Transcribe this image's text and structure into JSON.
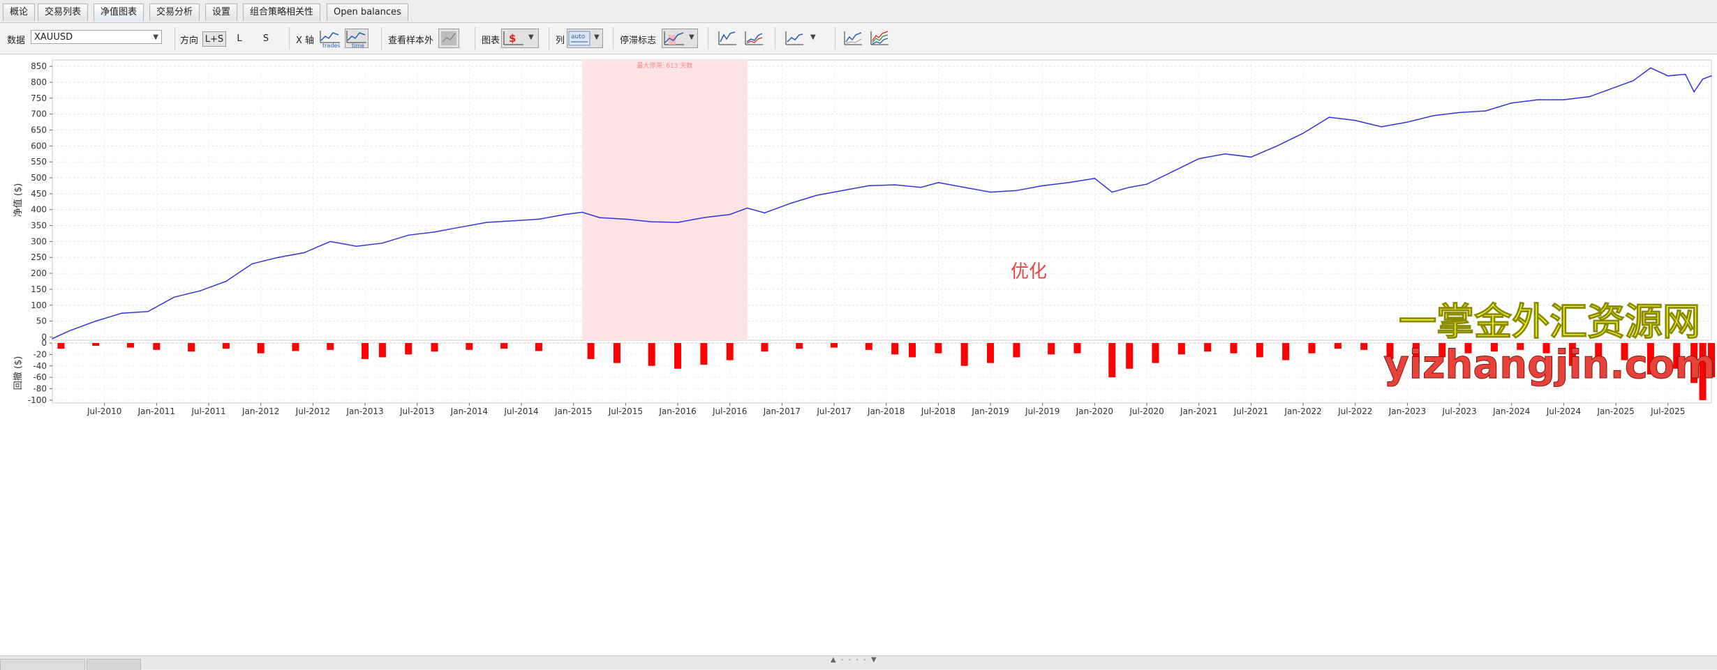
{
  "tabs": [
    {
      "label": "概论"
    },
    {
      "label": "交易列表"
    },
    {
      "label": "净值图表"
    },
    {
      "label": "交易分析"
    },
    {
      "label": "设置"
    },
    {
      "label": "组合策略相关性"
    },
    {
      "label": "Open balances"
    }
  ],
  "active_tab": "净值图表",
  "toolbar": {
    "data_label": "数据",
    "data_value": "XAUUSD",
    "direction_label": "方向",
    "direction_options": [
      "L+S",
      "L",
      "S"
    ],
    "direction_selected": "L+S",
    "xaxis_label": "X 轴",
    "xaxis_trades": "trades",
    "xaxis_time": "time",
    "oos_label": "查看样本外",
    "chart_label": "图表",
    "column_label": "列",
    "column_auto": "auto",
    "drawdown_label": "停滞标志"
  },
  "colors": {
    "equity_line": "#3333dd",
    "drawdown_bars": "#ff0000",
    "highlight": "#fde4e4",
    "watermark_yellow": "#ffff33",
    "watermark_red": "#e8423a"
  },
  "watermark": {
    "chinese": "一掌金外汇资源网",
    "url": "yizhangjin.com"
  },
  "chart_data": [
    {
      "type": "line",
      "title": "",
      "ylabel": "净值 ($)",
      "ylim": [
        -10,
        870
      ],
      "yticks": [
        850,
        800,
        750,
        700,
        650,
        600,
        550,
        500,
        450,
        400,
        350,
        300,
        250,
        200,
        150,
        100,
        50,
        0
      ],
      "xlabels": [
        "Jul-2010",
        "Jan-2011",
        "Jul-2011",
        "Jan-2012",
        "Jul-2012",
        "Jan-2013",
        "Jul-2013",
        "Jan-2014",
        "Jul-2014",
        "Jan-2015",
        "Jul-2015",
        "Jan-2016",
        "Jul-2016",
        "Jan-2017",
        "Jul-2017",
        "Jan-2018",
        "Jul-2018",
        "Jan-2019",
        "Jul-2019",
        "Jan-2020",
        "Jul-2020",
        "Jan-2021",
        "Jul-2021",
        "Jan-2022",
        "Jul-2022",
        "Jan-2023",
        "Jul-2023",
        "Jan-2024",
        "Jul-2024",
        "Jan-2025",
        "Jul-2025"
      ],
      "x_range": [
        "2010-01",
        "2025-12"
      ],
      "highlight": {
        "start": "2015-02",
        "end": "2016-09",
        "label": "最大停滞: 613 天数"
      },
      "annotation": "优化",
      "series": [
        {
          "x": [
            "2010-01",
            "2010-03",
            "2010-06",
            "2010-09",
            "2010-12",
            "2011-03",
            "2011-06",
            "2011-09",
            "2011-12",
            "2012-03",
            "2012-06",
            "2012-09",
            "2012-12",
            "2013-03",
            "2013-06",
            "2013-09",
            "2013-12",
            "2014-03",
            "2014-06",
            "2014-09",
            "2014-12",
            "2015-02",
            "2015-04",
            "2015-07",
            "2015-10",
            "2016-01",
            "2016-04",
            "2016-07",
            "2016-09",
            "2016-11",
            "2017-02",
            "2017-05",
            "2017-08",
            "2017-11",
            "2018-02",
            "2018-05",
            "2018-07",
            "2018-10",
            "2019-01",
            "2019-04",
            "2019-07",
            "2019-10",
            "2020-01",
            "2020-03",
            "2020-05",
            "2020-07",
            "2020-10",
            "2021-01",
            "2021-04",
            "2021-07",
            "2021-10",
            "2022-01",
            "2022-04",
            "2022-07",
            "2022-10",
            "2023-01",
            "2023-04",
            "2023-07",
            "2023-10",
            "2024-01",
            "2024-04",
            "2024-07",
            "2024-10",
            "2025-01",
            "2025-03",
            "2025-05",
            "2025-07",
            "2025-09",
            "2025-10",
            "2025-11",
            "2025-12"
          ],
          "y": [
            -5,
            20,
            50,
            75,
            80,
            125,
            145,
            175,
            230,
            250,
            265,
            300,
            285,
            295,
            320,
            330,
            345,
            360,
            365,
            370,
            385,
            392,
            375,
            370,
            362,
            360,
            375,
            385,
            405,
            390,
            420,
            445,
            460,
            475,
            478,
            470,
            485,
            470,
            455,
            460,
            475,
            485,
            498,
            455,
            470,
            480,
            520,
            560,
            575,
            565,
            600,
            640,
            690,
            680,
            660,
            675,
            695,
            705,
            710,
            735,
            745,
            745,
            755,
            785,
            805,
            845,
            820,
            825,
            770,
            810,
            820
          ]
        }
      ]
    },
    {
      "type": "bar",
      "title": "",
      "ylabel": "回撤 ($)",
      "ylim": [
        -105,
        0
      ],
      "yticks": [
        0,
        -20,
        -40,
        -60,
        -80,
        -100
      ],
      "x_range": [
        "2010-01",
        "2025-12"
      ],
      "series": [
        {
          "x": [
            "2010-02",
            "2010-06",
            "2010-10",
            "2011-01",
            "2011-05",
            "2011-09",
            "2012-01",
            "2012-05",
            "2012-09",
            "2013-01",
            "2013-03",
            "2013-06",
            "2013-09",
            "2014-01",
            "2014-05",
            "2014-09",
            "2015-03",
            "2015-06",
            "2015-10",
            "2016-01",
            "2016-04",
            "2016-07",
            "2016-11",
            "2017-03",
            "2017-07",
            "2017-11",
            "2018-02",
            "2018-04",
            "2018-07",
            "2018-10",
            "2019-01",
            "2019-04",
            "2019-08",
            "2019-11",
            "2020-03",
            "2020-05",
            "2020-08",
            "2020-11",
            "2021-02",
            "2021-05",
            "2021-08",
            "2021-11",
            "2022-02",
            "2022-05",
            "2022-08",
            "2022-11",
            "2023-02",
            "2023-05",
            "2023-08",
            "2023-11",
            "2024-02",
            "2024-05",
            "2024-08",
            "2024-11",
            "2025-02",
            "2025-05",
            "2025-08",
            "2025-10",
            "2025-11",
            "2025-12"
          ],
          "y": [
            -10,
            -5,
            -8,
            -12,
            -15,
            -10,
            -18,
            -14,
            -12,
            -28,
            -25,
            -20,
            -15,
            -12,
            -10,
            -14,
            -28,
            -35,
            -40,
            -45,
            -38,
            -30,
            -15,
            -10,
            -8,
            -12,
            -20,
            -25,
            -18,
            -40,
            -35,
            -25,
            -20,
            -18,
            -60,
            -45,
            -35,
            -20,
            -15,
            -18,
            -25,
            -30,
            -18,
            -10,
            -12,
            -28,
            -35,
            -25,
            -18,
            -15,
            -12,
            -18,
            -40,
            -25,
            -30,
            -55,
            -45,
            -70,
            -100,
            -60
          ]
        }
      ]
    }
  ]
}
